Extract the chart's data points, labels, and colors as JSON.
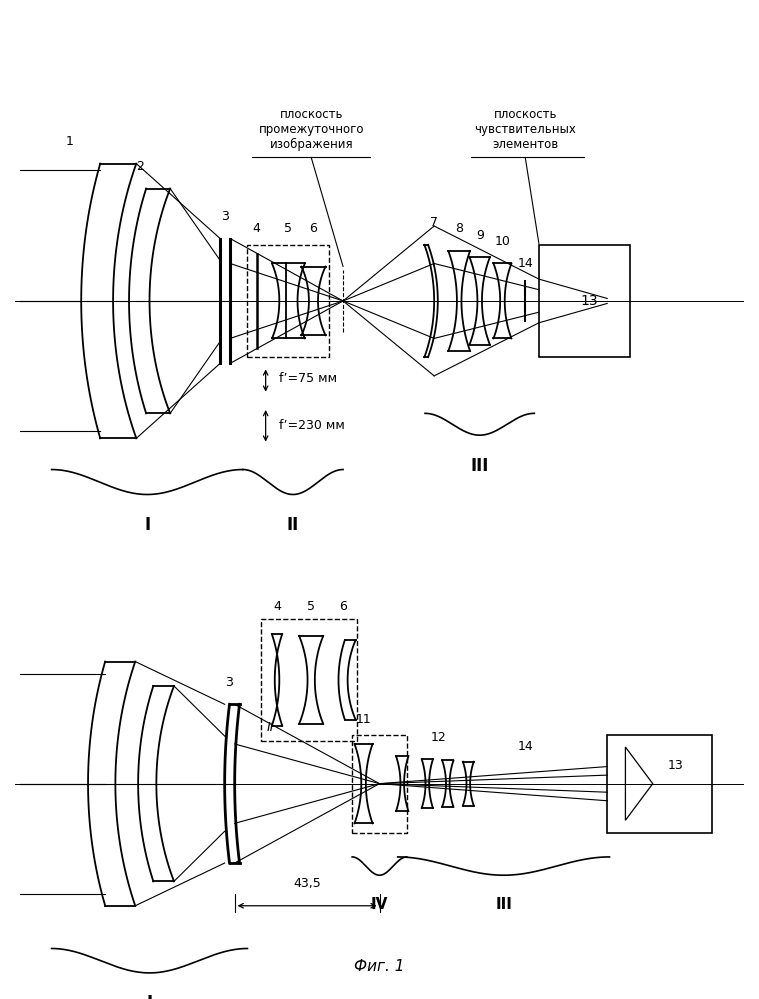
{
  "title": "Фиг. 1",
  "bg": "#ffffff",
  "fig1": {
    "ann1": "плоскость\nпромежуточного\nизображения",
    "ann2": "плоскость\nчувствительных\nэлементов",
    "f1": "f’=75 мм",
    "f2": "f’=230 мм"
  },
  "fig2": {
    "dim": "43,5"
  }
}
